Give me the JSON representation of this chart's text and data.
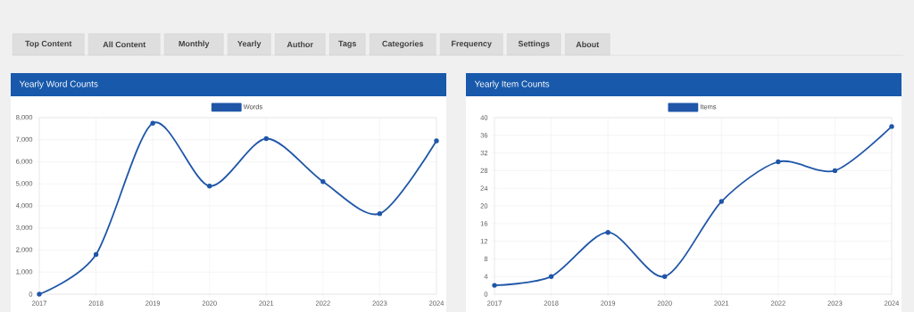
{
  "chart_data": [
    {
      "type": "other",
      "annotations": [
        "Top Content",
        "All Content",
        "Monthly",
        "Yearly",
        "Author",
        "Tags",
        "Categories",
        "Frequency",
        "Settings",
        "About"
      ]
    },
    {
      "type": "line",
      "title": "Yearly Word Counts",
      "x": [
        2017,
        2018,
        2019,
        2020,
        2021,
        2022,
        2023,
        2024
      ],
      "series": [
        {
          "name": "Words",
          "color": "#1f56a8",
          "values": [
            0,
            1800,
            7750,
            4900,
            7050,
            5100,
            3650,
            6950
          ]
        }
      ],
      "xlim": [
        2017,
        2024
      ],
      "xticks": [
        2017,
        2018,
        2019,
        2020,
        2021,
        2022,
        2023,
        2024
      ],
      "ylim": [
        0,
        8000
      ],
      "yticks": [
        {
          "value": 0,
          "label": "0"
        },
        {
          "value": 1000,
          "label": "1,000"
        },
        {
          "value": 2000,
          "label": "2,000"
        },
        {
          "value": 3000,
          "label": "3,000"
        },
        {
          "value": 4000,
          "label": "4,000"
        },
        {
          "value": 5000,
          "label": "5,000"
        },
        {
          "value": 6000,
          "label": "6,000"
        },
        {
          "value": 7000,
          "label": "7,000"
        },
        {
          "value": 8000,
          "label": "8,000"
        }
      ],
      "grid": true,
      "legend": "top",
      "marker": "circle",
      "line_style": "solid"
    },
    {
      "type": "line",
      "title": "Yearly Item Counts",
      "x": [
        2017,
        2018,
        2019,
        2020,
        2021,
        2022,
        2023,
        2024
      ],
      "series": [
        {
          "name": "Items",
          "color": "#1f56a8",
          "values": [
            2,
            4,
            14,
            4,
            21,
            30,
            28,
            38
          ]
        }
      ],
      "xlim": [
        2017,
        2024
      ],
      "xticks": [
        2017,
        2018,
        2019,
        2020,
        2021,
        2022,
        2023,
        2024
      ],
      "ylim": [
        0,
        40
      ],
      "yticks": [
        0,
        4,
        8,
        12,
        16,
        20,
        24,
        28,
        32,
        36,
        40
      ],
      "grid": true,
      "legend": "top",
      "marker": "circle",
      "line_style": "solid"
    }
  ]
}
